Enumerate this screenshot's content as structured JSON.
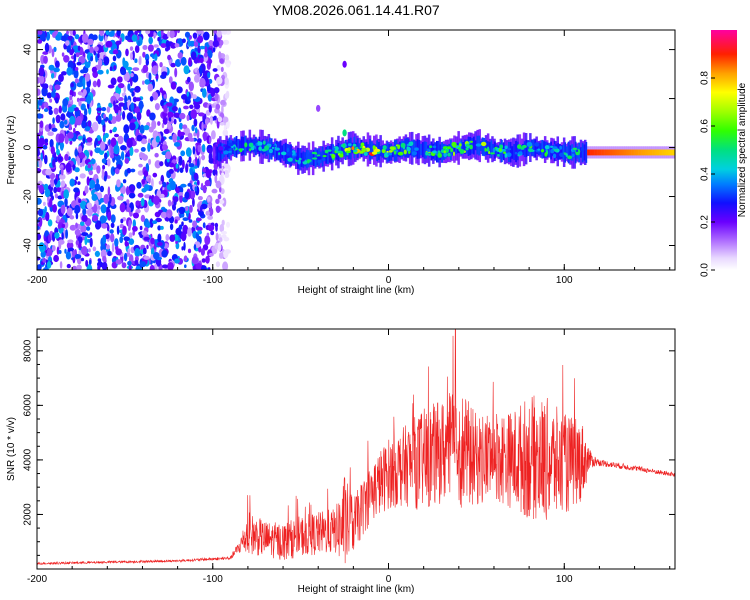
{
  "title": "YM08.2026.061.14.41.R07",
  "chart_data": [
    {
      "type": "heatmap",
      "xlabel": "Height of straight line (km)",
      "ylabel": "Frequency (Hz)",
      "xlim": [
        -200,
        163
      ],
      "ylim": [
        -50,
        48
      ],
      "xticks": [
        -200,
        -100,
        0,
        100
      ],
      "xtick_labels": [
        "-200",
        "-100",
        "0",
        "100"
      ],
      "yticks": [
        -40,
        -20,
        0,
        20,
        40
      ],
      "ytick_labels": [
        "-40",
        "-20",
        "0",
        "20",
        "40"
      ],
      "colorbar": {
        "label": "Normalized spectral amplitude",
        "range": [
          0,
          1
        ],
        "ticks": [
          0,
          0.2,
          0.4,
          0.6,
          0.8
        ],
        "tick_labels": [
          "0.0",
          "0.2",
          "0.4",
          "0.6",
          "0.8"
        ]
      },
      "ridge": {
        "x": [
          -100,
          -90,
          -80,
          -70,
          -60,
          -50,
          -40,
          -30,
          -20,
          -10,
          0,
          10,
          20,
          30,
          40,
          50,
          60,
          70,
          80,
          90,
          100,
          110,
          120,
          140,
          163
        ],
        "y": [
          -3,
          0,
          1,
          0,
          -2,
          -5,
          -4,
          -2,
          0,
          -1,
          -2,
          0,
          -1,
          -2,
          0,
          1,
          -1,
          -2,
          0,
          -1,
          -2,
          -2,
          -2,
          -2,
          -2
        ],
        "amplitude": [
          0.25,
          0.45,
          0.5,
          0.45,
          0.4,
          0.45,
          0.5,
          0.55,
          0.75,
          0.8,
          0.65,
          0.6,
          0.6,
          0.55,
          0.6,
          0.65,
          0.6,
          0.5,
          0.55,
          0.5,
          0.45,
          0.5,
          0.95,
          0.95,
          0.95
        ]
      },
      "noise_region_x": [
        -200,
        -97
      ],
      "isolated_features": [
        {
          "x": -25,
          "y": 34,
          "amplitude": 0.2
        },
        {
          "x": -40,
          "y": 16,
          "amplitude": 0.15
        },
        {
          "x": -25,
          "y": 6,
          "amplitude": 0.5
        }
      ]
    },
    {
      "type": "line",
      "xlabel": "Height of straight line (km)",
      "ylabel": "SNR (10 * v/v)",
      "xlim": [
        -200,
        163
      ],
      "ylim": [
        0,
        8800
      ],
      "xticks": [
        -200,
        -100,
        0,
        100
      ],
      "xtick_labels": [
        "-200",
        "-100",
        "0",
        "100"
      ],
      "yticks": [
        2000,
        4000,
        6000,
        8000
      ],
      "ytick_labels": [
        "2000",
        "4000",
        "6000",
        "8000"
      ],
      "color": "#ee2222",
      "series": [
        {
          "name": "SNR",
          "x": [
            -200,
            -120,
            -90,
            -85,
            -80,
            -70,
            -60,
            -50,
            -40,
            -30,
            -25,
            -20,
            -10,
            0,
            10,
            20,
            30,
            40,
            50,
            60,
            70,
            80,
            90,
            100,
            110,
            115,
            120,
            140,
            163
          ],
          "y": [
            200,
            300,
            400,
            800,
            1300,
            1100,
            1000,
            1200,
            1300,
            1400,
            1700,
            1600,
            2800,
            3500,
            3800,
            4000,
            4300,
            4500,
            4000,
            4200,
            4000,
            4100,
            4000,
            3800,
            4000,
            4000,
            3900,
            3700,
            3450
          ],
          "spread": [
            40,
            40,
            60,
            250,
            800,
            650,
            700,
            750,
            800,
            850,
            1800,
            1000,
            1100,
            1300,
            1500,
            1900,
            1900,
            2300,
            1700,
            1700,
            1800,
            2300,
            2300,
            1900,
            1500,
            300,
            120,
            100,
            80
          ],
          "max_peak": {
            "x": 38,
            "y": 8800
          }
        }
      ]
    }
  ],
  "colors": {
    "background": "#ffffff",
    "frame": "#000000",
    "snr_line": "#ee2222"
  }
}
